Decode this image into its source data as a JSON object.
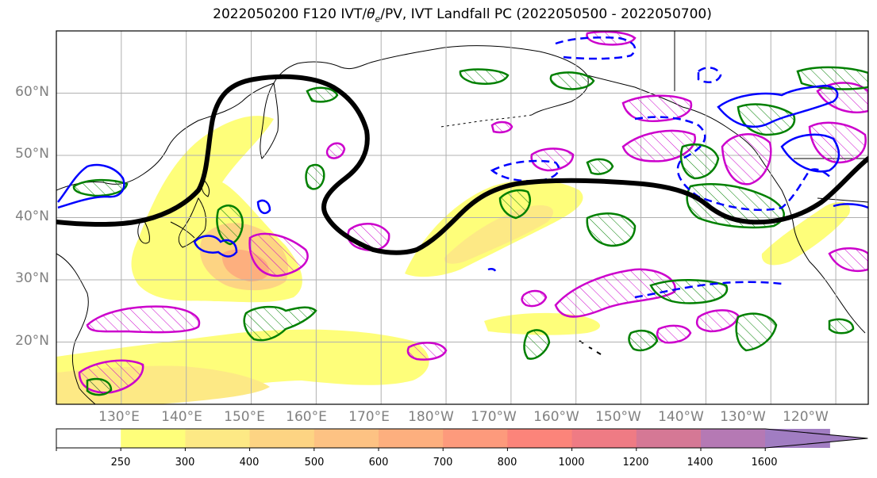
{
  "title": {
    "prefix": "2022050200 F120 IVT/",
    "theta": "θ",
    "theta_sub": "e",
    "suffix": "/PV, IVT Landfall PC (2022050500 - 2022050700)"
  },
  "map": {
    "region": "North Pacific",
    "projection": "equirectangular",
    "lon_range": [
      120,
      245
    ],
    "lat_range": [
      10,
      70
    ],
    "gridlines": true,
    "lat_labels": [
      "60°N",
      "50°N",
      "40°N",
      "30°N",
      "20°N"
    ],
    "lon_labels": [
      "130°E",
      "140°E",
      "150°E",
      "160°E",
      "170°E",
      "180°W",
      "170°W",
      "160°W",
      "150°W",
      "140°W",
      "130°W",
      "120°W"
    ]
  },
  "colorbar": {
    "levels": [
      "250",
      "300",
      "400",
      "500",
      "600",
      "700",
      "800",
      "1000",
      "1200",
      "1400",
      "1600"
    ],
    "colors": [
      "#ffffff",
      "#fefe7a",
      "#fde985",
      "#fdd483",
      "#fdc283",
      "#fdaf7e",
      "#fd9a7c",
      "#fc847a",
      "#ef7b84",
      "#d57895",
      "#b579b4",
      "#a17dc2"
    ],
    "extend": "max"
  },
  "legend_colors": {
    "pv_positive": "#cc00cc",
    "pv_negative": "#008000",
    "theta_e": "#0000ff",
    "landfall_pc": "#000000"
  }
}
